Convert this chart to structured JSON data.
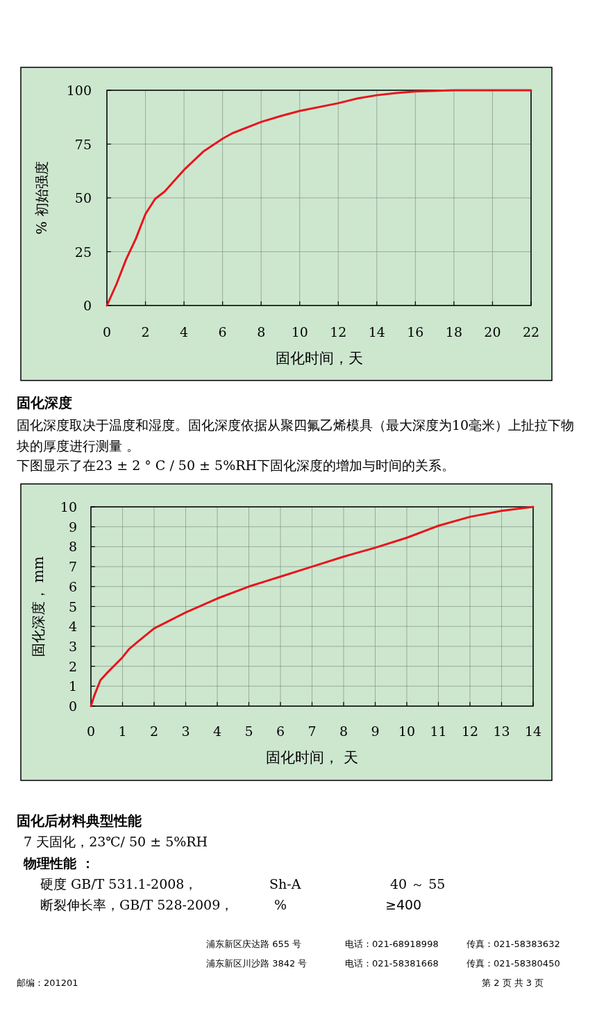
{
  "chart_data": [
    {
      "type": "line",
      "xlabel": "固化时间，天",
      "ylabel": "% 初始强度",
      "xlim": [
        0,
        22
      ],
      "ylim": [
        0,
        100
      ],
      "xticks": [
        0,
        2,
        4,
        6,
        8,
        10,
        12,
        14,
        16,
        18,
        20,
        22
      ],
      "yticks": [
        0,
        25,
        50,
        75,
        100
      ],
      "grid": true,
      "x": [
        0,
        0.5,
        1,
        1.5,
        2,
        2.5,
        3,
        4,
        5,
        6,
        6.5,
        8,
        9,
        10,
        12,
        13,
        14,
        15,
        16,
        18,
        22
      ],
      "series": [
        {
          "color": "#e8141c",
          "values": [
            0,
            10,
            21.5,
            31,
            42.5,
            49.5,
            53,
            63,
            71.5,
            77.5,
            80,
            85.3,
            88,
            90.4,
            94,
            96.2,
            97.7,
            98.7,
            99.4,
            100,
            100
          ]
        }
      ]
    },
    {
      "type": "line",
      "title": "固化深度",
      "subtitle": "固化深度取决于温度和湿度。固化深度依据从聚四氟乙烯模具（最大深度为10毫米）上扯拉下物块的厚度进行测量 。",
      "xlabel": "固化时间，  天",
      "ylabel": "固化深度， mm",
      "xlim": [
        0,
        14
      ],
      "ylim": [
        0,
        10
      ],
      "xticks": [
        0,
        1,
        2,
        3,
        4,
        5,
        6,
        7,
        8,
        9,
        10,
        11,
        12,
        13,
        14
      ],
      "yticks": [
        0,
        1,
        2,
        3,
        4,
        5,
        6,
        7,
        8,
        9,
        10
      ],
      "grid": true,
      "x": [
        0,
        0.1,
        0.3,
        0.5,
        1,
        1.2,
        1.5,
        2,
        2.5,
        3,
        4,
        5,
        5.5,
        6,
        7,
        8,
        9,
        10,
        11,
        12,
        13,
        14
      ],
      "series": [
        {
          "color": "#e8141c",
          "values": [
            0,
            0.5,
            1.3,
            1.65,
            2.45,
            2.85,
            3.25,
            3.9,
            4.3,
            4.7,
            5.4,
            6,
            6.25,
            6.5,
            7,
            7.5,
            7.95,
            8.45,
            9.05,
            9.5,
            9.8,
            10
          ]
        }
      ],
      "annotations": [
        "下图显示了在23 ± 2 ° C / 50 ± 5%RH下固化深度的增加与时间的关系。",
        "固化后材料典型性能",
        "7 天固化，23℃/ 50 ± 5%RH",
        "物理性能 ：",
        "硬度 GB/T 531.1-2008，",
        "Sh-A",
        "40 ～ 55",
        "断裂伸长率，GB/T 528-2009，",
        "%",
        "≥400",
        "浦东新区庆达路 655 号",
        "电话：021-68918998",
        "传真：021-58383632",
        "浦东新区川沙路 3842 号",
        "电话：021-58381668",
        "传真：021-58380450",
        "邮编：201201",
        "第 2 页 共 3 页"
      ]
    }
  ]
}
